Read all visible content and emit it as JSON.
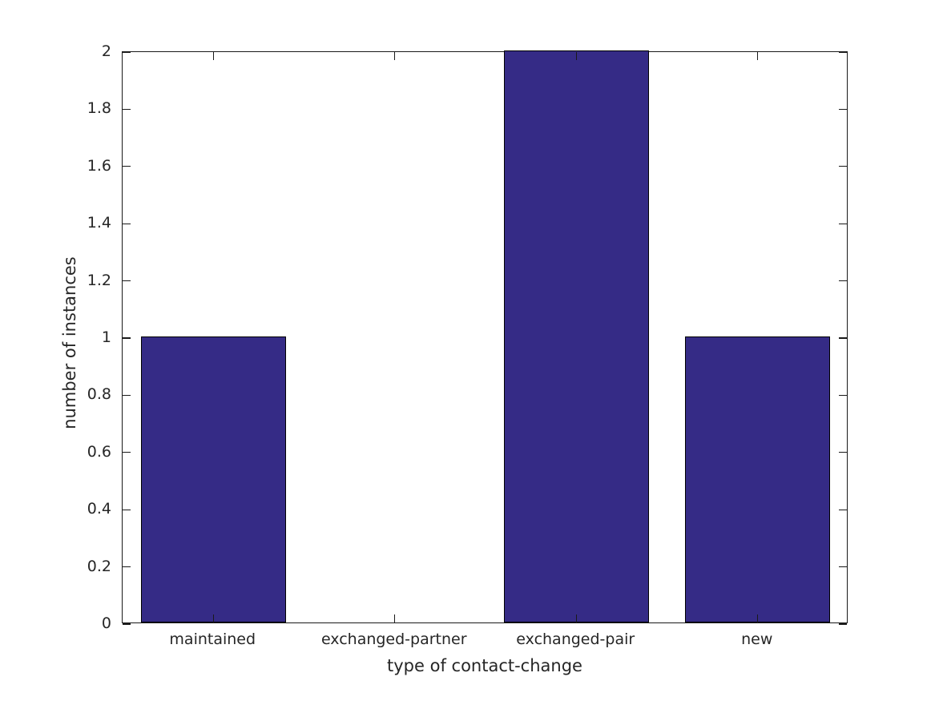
{
  "chart_data": {
    "type": "bar",
    "title": "",
    "categories": [
      "maintained",
      "exchanged-partner",
      "exchanged-pair",
      "new"
    ],
    "values": [
      1,
      0,
      2,
      1
    ],
    "xlabel": "type of contact-change",
    "ylabel": "number of instances",
    "ylim": [
      0,
      2
    ],
    "ytick_interval": 0.2,
    "ytick_labels": [
      "0",
      "0.2",
      "0.4",
      "0.6",
      "0.8",
      "1",
      "1.2",
      "1.4",
      "1.6",
      "1.8",
      "2"
    ],
    "bar_width_fraction": 0.8,
    "grid": false,
    "legend": null,
    "colors": {
      "bar_fill": "#352B86",
      "bar_edge": "#000000",
      "axis": "#1a1a1a",
      "text": "#262626",
      "background": "#ffffff"
    }
  }
}
